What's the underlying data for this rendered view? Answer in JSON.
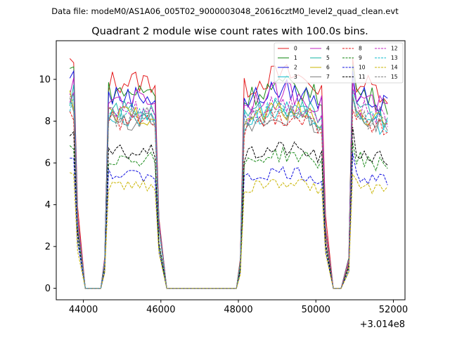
{
  "chart_data": {
    "type": "line",
    "suptitle": "Data file: modeM0/AS1A06_005T02_9000003048_20616cztM0_level2_quad_clean.evt",
    "title": "Quadrant 2 module wise count rates with 100.0s bins.",
    "xlabel": "",
    "ylabel": "",
    "x_offset_label": "+3.014e8",
    "xlim": [
      43300,
      52300
    ],
    "ylim": [
      -0.55,
      11.85
    ],
    "xticks": [
      44000,
      46000,
      48000,
      50000,
      52000
    ],
    "xtick_labels": [
      "44000",
      "46000",
      "48000",
      "50000",
      "52000"
    ],
    "yticks": [
      0,
      2,
      4,
      6,
      8,
      10
    ],
    "ytick_labels": [
      "0",
      "2",
      "4",
      "6",
      "8",
      "10"
    ],
    "legend_loc": "upper right",
    "segments": [
      {
        "start": 43650,
        "end": 43850
      },
      {
        "start": 44550,
        "end": 45950
      },
      {
        "start": 48050,
        "end": 50250
      },
      {
        "start": 50850,
        "end": 51850
      }
    ],
    "zero_ranges": [
      {
        "start": 44050,
        "end": 44450
      },
      {
        "start": 46150,
        "end": 47950
      },
      {
        "start": 50450,
        "end": 50650
      }
    ],
    "series": [
      {
        "name": "0",
        "color": "#e41a1c",
        "dash": "solid",
        "level": 9.9,
        "peak": 10.7
      },
      {
        "name": "1",
        "color": "#1a8a1a",
        "dash": "solid",
        "level": 9.4,
        "peak": 10.4
      },
      {
        "name": "2",
        "color": "#1010e0",
        "dash": "solid",
        "level": 9.2,
        "peak": 10.1
      },
      {
        "name": "3",
        "color": "#17becf",
        "dash": "solid",
        "level": 8.2,
        "peak": 9.0
      },
      {
        "name": "4",
        "color": "#c020c0",
        "dash": "solid",
        "level": 9.1,
        "peak": 9.6
      },
      {
        "name": "5",
        "color": "#20b8a8",
        "dash": "solid",
        "level": 8.5,
        "peak": 9.2
      },
      {
        "name": "6",
        "color": "#c8b400",
        "dash": "solid",
        "level": 8.3,
        "peak": 9.0
      },
      {
        "name": "7",
        "color": "#808080",
        "dash": "solid",
        "level": 8.0,
        "peak": 8.8
      },
      {
        "name": "8",
        "color": "#e41a1c",
        "dash": "dashed",
        "level": 8.0,
        "peak": 8.3
      },
      {
        "name": "9",
        "color": "#1a8a1a",
        "dash": "dashed",
        "level": 6.2,
        "peak": 6.8
      },
      {
        "name": "10",
        "color": "#1010e0",
        "dash": "dashed",
        "level": 5.4,
        "peak": 6.3
      },
      {
        "name": "11",
        "color": "#000000",
        "dash": "dashed",
        "level": 6.5,
        "peak": 7.5
      },
      {
        "name": "12",
        "color": "#c020c0",
        "dash": "dashed",
        "level": 8.6,
        "peak": 9.3
      },
      {
        "name": "13",
        "color": "#17becf",
        "dash": "dashed",
        "level": 8.4,
        "peak": 9.0
      },
      {
        "name": "14",
        "color": "#c8b400",
        "dash": "dashed",
        "level": 4.9,
        "peak": 5.3
      },
      {
        "name": "15",
        "color": "#808080",
        "dash": "dashed",
        "level": 8.2,
        "peak": 8.9
      }
    ]
  }
}
